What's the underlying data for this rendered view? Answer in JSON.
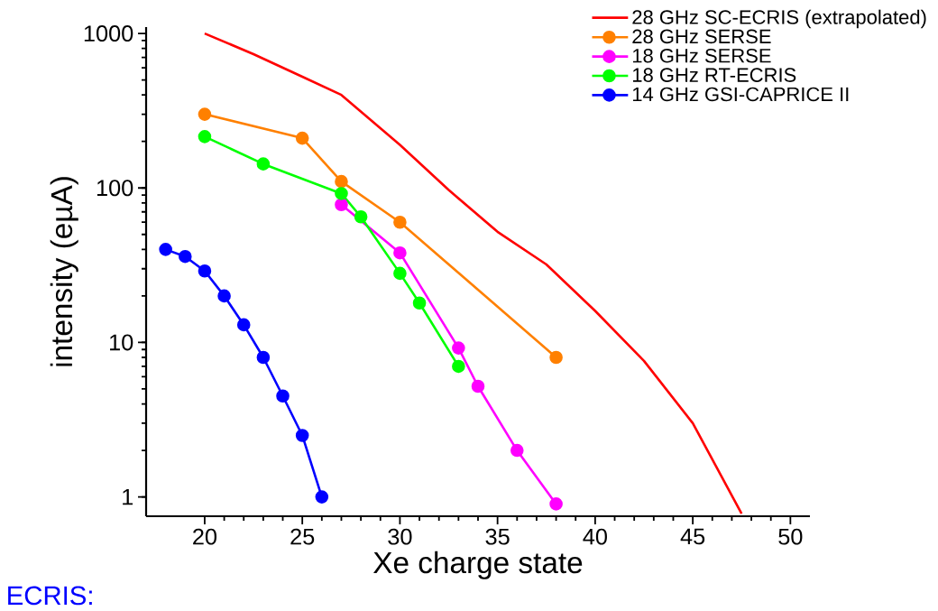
{
  "chart_data": {
    "type": "line",
    "xlabel": "Xe charge state",
    "ylabel": "intensity (eµA)",
    "log": "y",
    "xlim": [
      17,
      51
    ],
    "xticks": [
      20,
      25,
      30,
      35,
      40,
      45,
      50
    ],
    "ylim": [
      0.75,
      1100
    ],
    "yticks": [
      1,
      10,
      100,
      1000
    ],
    "legend": "top right",
    "marker": "circle",
    "line_style": "solid",
    "grid": false,
    "annotations": [
      "ECRIS:"
    ],
    "series": [
      {
        "name": "28 GHz SC-ECRIS (extrapolated)",
        "color": "#ff0000",
        "marker": "none",
        "x": [
          20,
          22.5,
          25,
          27,
          30,
          32.5,
          35,
          37.5,
          40,
          42.5,
          45,
          47.5
        ],
        "values": [
          1000,
          735,
          525,
          400,
          190,
          97,
          52,
          32,
          16,
          7.6,
          3.0,
          0.78
        ]
      },
      {
        "name": "28 GHz SERSE",
        "color": "#ff8000",
        "x": [
          20,
          25,
          27,
          30,
          38
        ],
        "values": [
          300,
          210,
          110,
          60,
          8
        ]
      },
      {
        "name": "18 GHz SERSE",
        "color": "#ff00ff",
        "x": [
          27,
          30,
          33,
          34,
          36,
          38
        ],
        "values": [
          78,
          38,
          9.2,
          5.2,
          2,
          0.9
        ]
      },
      {
        "name": "18 GHz RT-ECRIS",
        "color": "#00ff00",
        "x": [
          20,
          23,
          27,
          28,
          30,
          31,
          33
        ],
        "values": [
          215,
          143,
          92,
          65,
          28,
          18,
          7
        ]
      },
      {
        "name": "14 GHz GSI-CAPRICE II",
        "color": "#0000ff",
        "x": [
          18,
          19,
          20,
          21,
          22,
          23,
          24,
          25,
          26
        ],
        "values": [
          40,
          36,
          29,
          20,
          13,
          8,
          4.5,
          2.5,
          1
        ]
      }
    ]
  }
}
